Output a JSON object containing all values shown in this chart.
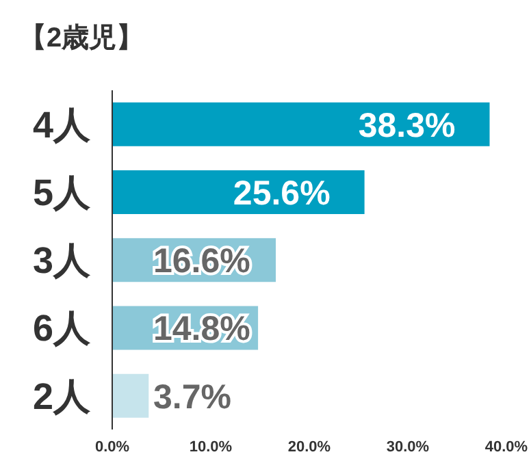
{
  "chart_data": {
    "type": "bar",
    "orientation": "horizontal",
    "title": "【2歳児】",
    "categories": [
      "4人",
      "5人",
      "3人",
      "6人",
      "2人"
    ],
    "values": [
      38.3,
      25.6,
      16.6,
      14.8,
      3.7
    ],
    "colors": [
      "#009fc1",
      "#009fc1",
      "#8bc8d8",
      "#8bc8d8",
      "#c6e4ec"
    ],
    "value_labels": [
      "38.3%",
      "25.6%",
      "16.6%",
      "14.8%",
      "3.7%"
    ],
    "xlim": [
      0,
      40
    ],
    "xticks": [
      {
        "value": 0,
        "label": "0.0%"
      },
      {
        "value": 10,
        "label": "10.0%"
      },
      {
        "value": 20,
        "label": "20.0%"
      },
      {
        "value": 30,
        "label": "30.0%"
      },
      {
        "value": 40,
        "label": "40.0%"
      }
    ],
    "grid": false,
    "legend": false
  }
}
